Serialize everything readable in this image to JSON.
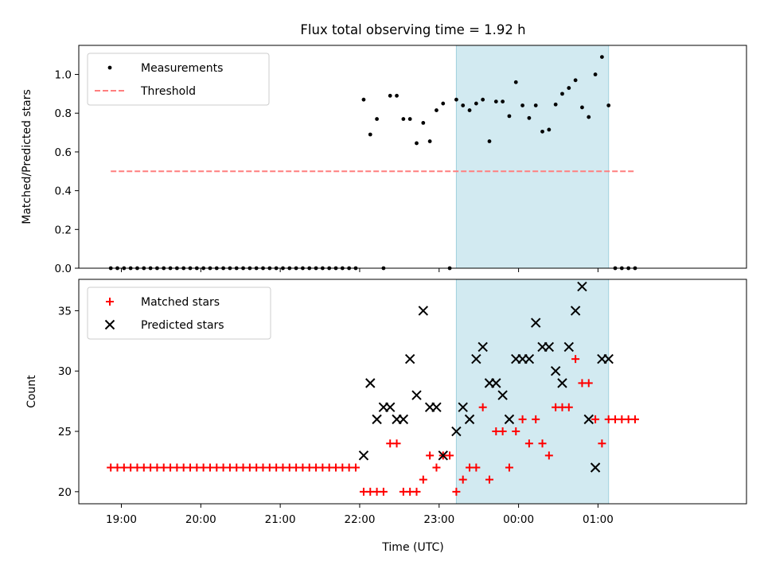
{
  "chart_data": {
    "title": "Flux total observing time = 1.92 h",
    "x_tick_labels": [
      "19:00",
      "20:00",
      "21:00",
      "22:00",
      "23:00",
      "00:00",
      "01:00"
    ],
    "xlabel": "Time (UTC)",
    "highlight_region": {
      "start": "23:13",
      "end": "01:08",
      "color": "#add8e6"
    },
    "panels": [
      {
        "type": "scatter",
        "ylabel": "Matched/Predicted stars",
        "ylim": [
          0.0,
          1.15
        ],
        "y_ticks": [
          "0.0",
          "0.2",
          "0.4",
          "0.6",
          "0.8",
          "1.0"
        ],
        "legend_position": "top-left",
        "legend": [
          "Measurements",
          "Threshold"
        ],
        "series": [
          {
            "name": "Measurements",
            "marker": "dot",
            "color": "#000000",
            "x": [
              "18:52",
              "18:57",
              "19:02",
              "19:07",
              "19:12",
              "19:17",
              "19:22",
              "19:27",
              "19:32",
              "19:37",
              "19:42",
              "19:47",
              "19:52",
              "19:57",
              "20:02",
              "20:07",
              "20:12",
              "20:17",
              "20:22",
              "20:27",
              "20:32",
              "20:37",
              "20:42",
              "20:47",
              "20:52",
              "20:57",
              "21:02",
              "21:07",
              "21:12",
              "21:17",
              "21:22",
              "21:27",
              "21:32",
              "21:37",
              "21:42",
              "21:47",
              "21:52",
              "21:57",
              "22:03",
              "22:08",
              "22:13",
              "22:18",
              "22:23",
              "22:28",
              "22:33",
              "22:38",
              "22:43",
              "22:48",
              "22:53",
              "22:58",
              "23:03",
              "23:08",
              "23:13",
              "23:18",
              "23:23",
              "23:28",
              "23:33",
              "23:38",
              "23:43",
              "23:48",
              "23:53",
              "23:58",
              "00:03",
              "00:08",
              "00:13",
              "00:18",
              "00:23",
              "00:28",
              "00:33",
              "00:38",
              "00:43",
              "00:48",
              "00:53",
              "00:58",
              "01:03",
              "01:08",
              "01:13",
              "01:18",
              "01:23",
              "01:28"
            ],
            "y": [
              0,
              0,
              0,
              0,
              0,
              0,
              0,
              0,
              0,
              0,
              0,
              0,
              0,
              0,
              0,
              0,
              0,
              0,
              0,
              0,
              0,
              0,
              0,
              0,
              0,
              0,
              0,
              0,
              0,
              0,
              0,
              0,
              0,
              0,
              0,
              0,
              0,
              0,
              0.87,
              0.69,
              0.77,
              0,
              0.89,
              0.89,
              0.77,
              0.77,
              0.645,
              0.75,
              0.655,
              0.815,
              0.85,
              0,
              0.87,
              0.84,
              0.815,
              0.85,
              0.87,
              0.655,
              0.86,
              0.86,
              0.785,
              0.96,
              0.84,
              0.775,
              0.84,
              0.705,
              0.715,
              0.845,
              0.9,
              0.93,
              0.97,
              0.83,
              0.78,
              1.0,
              1.09,
              0.84,
              0,
              0,
              0,
              0
            ]
          },
          {
            "name": "Threshold",
            "line": "dashed",
            "color": "#ff7f7f",
            "x": [
              "18:52",
              "01:28"
            ],
            "y": [
              0.5,
              0.5
            ]
          }
        ]
      },
      {
        "type": "scatter",
        "ylabel": "Count",
        "ylim": [
          19.0,
          37.6
        ],
        "y_ticks": [
          "20",
          "25",
          "30",
          "35"
        ],
        "legend_position": "top-left",
        "legend": [
          "Matched stars",
          "Predicted stars"
        ],
        "series": [
          {
            "name": "Matched stars",
            "marker": "plus",
            "color": "#ff0000",
            "x": [
              "18:52",
              "18:57",
              "19:02",
              "19:07",
              "19:12",
              "19:17",
              "19:22",
              "19:27",
              "19:32",
              "19:37",
              "19:42",
              "19:47",
              "19:52",
              "19:57",
              "20:02",
              "20:07",
              "20:12",
              "20:17",
              "20:22",
              "20:27",
              "20:32",
              "20:37",
              "20:42",
              "20:47",
              "20:52",
              "20:57",
              "21:02",
              "21:07",
              "21:12",
              "21:17",
              "21:22",
              "21:27",
              "21:32",
              "21:37",
              "21:42",
              "21:47",
              "21:52",
              "21:57",
              "22:03",
              "22:08",
              "22:13",
              "22:18",
              "22:23",
              "22:28",
              "22:33",
              "22:38",
              "22:43",
              "22:48",
              "22:53",
              "22:58",
              "23:03",
              "23:08",
              "23:13",
              "23:18",
              "23:23",
              "23:28",
              "23:33",
              "23:38",
              "23:43",
              "23:48",
              "23:53",
              "23:58",
              "00:03",
              "00:08",
              "00:13",
              "00:18",
              "00:23",
              "00:28",
              "00:33",
              "00:38",
              "00:43",
              "00:48",
              "00:53",
              "00:58",
              "01:03",
              "01:08",
              "01:13",
              "01:18",
              "01:23",
              "01:28"
            ],
            "y": [
              22,
              22,
              22,
              22,
              22,
              22,
              22,
              22,
              22,
              22,
              22,
              22,
              22,
              22,
              22,
              22,
              22,
              22,
              22,
              22,
              22,
              22,
              22,
              22,
              22,
              22,
              22,
              22,
              22,
              22,
              22,
              22,
              22,
              22,
              22,
              22,
              22,
              22,
              20,
              20,
              20,
              20,
              24,
              24,
              20,
              20,
              20,
              21,
              23,
              22,
              23,
              23,
              20,
              21,
              22,
              22,
              27,
              21,
              25,
              25,
              22,
              25,
              26,
              24,
              26,
              24,
              23,
              27,
              27,
              27,
              31,
              29,
              29,
              26,
              24,
              26,
              26,
              26,
              26,
              26
            ]
          },
          {
            "name": "Predicted stars",
            "marker": "x",
            "color": "#000000",
            "x": [
              "22:03",
              "22:08",
              "22:13",
              "22:18",
              "22:23",
              "22:28",
              "22:33",
              "22:38",
              "22:43",
              "22:48",
              "22:53",
              "22:58",
              "23:03",
              "23:13",
              "23:18",
              "23:23",
              "23:28",
              "23:33",
              "23:38",
              "23:43",
              "23:48",
              "23:53",
              "23:58",
              "00:03",
              "00:08",
              "00:13",
              "00:18",
              "00:23",
              "00:28",
              "00:33",
              "00:38",
              "00:43",
              "00:48",
              "00:53",
              "00:58",
              "01:03",
              "01:08"
            ],
            "y": [
              23,
              29,
              26,
              27,
              27,
              26,
              26,
              31,
              28,
              35,
              27,
              27,
              23,
              25,
              27,
              26,
              31,
              32,
              29,
              29,
              28,
              26,
              31,
              31,
              31,
              34,
              32,
              32,
              30,
              29,
              32,
              35,
              37,
              26,
              22,
              31,
              31
            ]
          }
        ]
      }
    ]
  }
}
